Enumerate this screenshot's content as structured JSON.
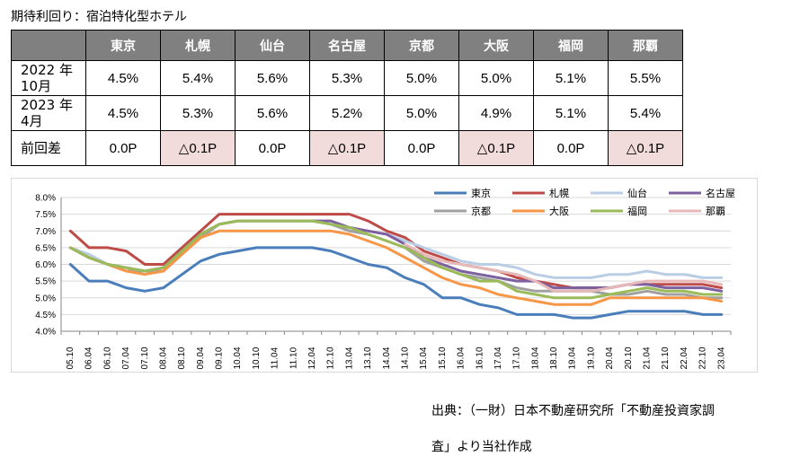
{
  "title": "期待利回り：宿泊特化型ホテル",
  "table": {
    "corner": "",
    "columns": [
      "東京",
      "札幌",
      "仙台",
      "名古屋",
      "京都",
      "大阪",
      "福岡",
      "那覇"
    ],
    "rows": [
      {
        "label": "2022 年\n10月",
        "values": [
          "4.5%",
          "5.4%",
          "5.6%",
          "5.3%",
          "5.0%",
          "5.0%",
          "5.1%",
          "5.5%"
        ],
        "neg": [
          false,
          false,
          false,
          false,
          false,
          false,
          false,
          false
        ]
      },
      {
        "label": "2023 年\n4月",
        "values": [
          "4.5%",
          "5.3%",
          "5.6%",
          "5.2%",
          "5.0%",
          "4.9%",
          "5.1%",
          "5.4%"
        ],
        "neg": [
          false,
          false,
          false,
          false,
          false,
          false,
          false,
          false
        ]
      },
      {
        "label": "前回差",
        "values": [
          "0.0P",
          "△0.1P",
          "0.0P",
          "△0.1P",
          "0.0P",
          "△0.1P",
          "0.0P",
          "△0.1P"
        ],
        "neg": [
          false,
          true,
          false,
          true,
          false,
          true,
          false,
          true
        ]
      }
    ],
    "highlight_color": "#f2dcdb",
    "header_color": "#808080"
  },
  "source_line1": "出典：（一財）日本不動産研究所「不動産投資家調",
  "source_line2": "査」より当社作成",
  "chart_data": {
    "type": "line",
    "title": "",
    "xlabel": "",
    "ylabel": "",
    "ylim": [
      4.0,
      8.0
    ],
    "yticks": [
      4.0,
      4.5,
      5.0,
      5.5,
      6.0,
      6.5,
      7.0,
      7.5,
      8.0
    ],
    "ytick_labels": [
      "4.0%",
      "4.5%",
      "5.0%",
      "5.5%",
      "6.0%",
      "6.5%",
      "7.0%",
      "7.5%",
      "8.0%"
    ],
    "grid": true,
    "legend_position": "top-right",
    "categories": [
      "05.10",
      "06.04",
      "06.10",
      "07.04",
      "07.10",
      "08.04",
      "08.10",
      "09.04",
      "09.10",
      "10.04",
      "10.10",
      "11.04",
      "11.10",
      "12.04",
      "12.10",
      "13.04",
      "13.10",
      "14.04",
      "14.10",
      "15.04",
      "15.10",
      "16.04",
      "16.10",
      "17.04",
      "17.10",
      "18.04",
      "18.10",
      "19.04",
      "19.10",
      "20.04",
      "20.10",
      "21.04",
      "21.10",
      "22.04",
      "22.10",
      "23.04"
    ],
    "series": [
      {
        "name": "東京",
        "color": "#4a7ebb",
        "values": [
          6.0,
          5.5,
          5.5,
          5.3,
          5.2,
          5.3,
          5.7,
          6.1,
          6.3,
          6.4,
          6.5,
          6.5,
          6.5,
          6.5,
          6.4,
          6.2,
          6.0,
          5.9,
          5.6,
          5.4,
          5.0,
          5.0,
          4.8,
          4.7,
          4.5,
          4.5,
          4.5,
          4.4,
          4.4,
          4.5,
          4.6,
          4.6,
          4.6,
          4.6,
          4.5,
          4.5
        ]
      },
      {
        "name": "札幌",
        "color": "#be4b48",
        "values": [
          7.0,
          6.5,
          6.5,
          6.4,
          6.0,
          6.0,
          6.5,
          7.0,
          7.5,
          7.5,
          7.5,
          7.5,
          7.5,
          7.5,
          7.5,
          7.5,
          7.3,
          7.0,
          6.8,
          6.4,
          6.2,
          6.0,
          5.9,
          5.8,
          5.6,
          5.5,
          5.4,
          5.3,
          5.3,
          5.3,
          5.4,
          5.4,
          5.4,
          5.4,
          5.4,
          5.3
        ]
      },
      {
        "name": "仙台",
        "color": "#b9cde5",
        "values": [
          6.5,
          6.3,
          6.0,
          5.9,
          5.8,
          5.8,
          6.3,
          6.8,
          7.2,
          7.3,
          7.3,
          7.3,
          7.3,
          7.3,
          7.2,
          7.1,
          7.0,
          6.9,
          6.7,
          6.5,
          6.3,
          6.1,
          6.0,
          6.0,
          5.9,
          5.7,
          5.6,
          5.6,
          5.6,
          5.7,
          5.7,
          5.8,
          5.7,
          5.7,
          5.6,
          5.6
        ]
      },
      {
        "name": "名古屋",
        "color": "#7d60a0",
        "values": [
          6.5,
          6.2,
          6.0,
          5.9,
          5.8,
          5.9,
          6.4,
          6.9,
          7.2,
          7.3,
          7.3,
          7.3,
          7.3,
          7.3,
          7.3,
          7.1,
          7.0,
          6.9,
          6.6,
          6.2,
          6.0,
          5.8,
          5.7,
          5.6,
          5.5,
          5.5,
          5.3,
          5.3,
          5.3,
          5.3,
          5.4,
          5.4,
          5.3,
          5.3,
          5.3,
          5.2
        ]
      },
      {
        "name": "京都",
        "color": "#a0a0a0",
        "values": [
          6.5,
          6.2,
          6.0,
          5.8,
          5.8,
          5.8,
          6.3,
          6.8,
          7.2,
          7.3,
          7.3,
          7.3,
          7.3,
          7.3,
          7.2,
          7.0,
          6.9,
          6.7,
          6.5,
          6.1,
          5.9,
          5.7,
          5.6,
          5.5,
          5.3,
          5.2,
          5.2,
          5.2,
          5.2,
          5.1,
          5.1,
          5.2,
          5.1,
          5.1,
          5.0,
          5.0
        ]
      },
      {
        "name": "大阪",
        "color": "#f79646",
        "values": [
          6.5,
          6.2,
          6.0,
          5.8,
          5.7,
          5.8,
          6.3,
          6.8,
          7.0,
          7.0,
          7.0,
          7.0,
          7.0,
          7.0,
          7.0,
          6.9,
          6.7,
          6.5,
          6.2,
          5.9,
          5.6,
          5.4,
          5.3,
          5.1,
          5.0,
          4.9,
          4.8,
          4.8,
          4.8,
          5.0,
          5.0,
          5.0,
          5.0,
          5.0,
          5.0,
          4.9
        ]
      },
      {
        "name": "福岡",
        "color": "#9bbb59",
        "values": [
          6.5,
          6.2,
          6.0,
          5.9,
          5.8,
          5.9,
          6.4,
          6.9,
          7.2,
          7.3,
          7.3,
          7.3,
          7.3,
          7.3,
          7.2,
          7.1,
          6.9,
          6.7,
          6.5,
          6.2,
          5.9,
          5.7,
          5.5,
          5.5,
          5.2,
          5.1,
          5.0,
          5.0,
          5.0,
          5.1,
          5.2,
          5.3,
          5.2,
          5.2,
          5.1,
          5.1
        ]
      },
      {
        "name": "那覇",
        "color": "#e6b9b8",
        "values": [
          null,
          null,
          null,
          null,
          null,
          null,
          null,
          null,
          null,
          null,
          null,
          null,
          null,
          null,
          null,
          null,
          null,
          null,
          6.6,
          6.3,
          6.1,
          6.0,
          5.9,
          5.8,
          5.7,
          5.5,
          5.2,
          5.2,
          5.2,
          5.3,
          5.4,
          5.5,
          5.5,
          5.5,
          5.5,
          5.4
        ]
      }
    ]
  }
}
